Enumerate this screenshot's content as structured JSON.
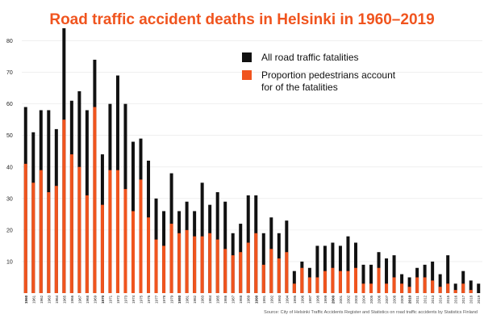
{
  "chart_data": {
    "type": "bar",
    "title": "Road traffic accident deaths in Helsinki in 1960–2019",
    "xlabel": "",
    "ylabel": "",
    "ylim": [
      0,
      85
    ],
    "yticks": [
      10,
      20,
      30,
      40,
      50,
      60,
      70,
      80
    ],
    "grid": true,
    "legend_placement": "top-right",
    "bold_year_labels": [
      "1960",
      "1970",
      "1980",
      "1990",
      "2000",
      "2010"
    ],
    "categories": [
      "1960",
      "1961",
      "1962",
      "1963",
      "1964",
      "1965",
      "1966",
      "1967",
      "1968",
      "1969",
      "1970",
      "1971",
      "1972",
      "1973",
      "1974",
      "1975",
      "1976",
      "1977",
      "1978",
      "1979",
      "1980",
      "1981",
      "1982",
      "1983",
      "1984",
      "1985",
      "1986",
      "1987",
      "1988",
      "1989",
      "1990",
      "1991",
      "1992",
      "1993",
      "1994",
      "1995",
      "1996",
      "1997",
      "1998",
      "1999",
      "2000",
      "2001",
      "2002",
      "2003",
      "2004",
      "2005",
      "2006",
      "2007",
      "2008",
      "2009",
      "2010",
      "2011",
      "2012",
      "2013",
      "2014",
      "2015",
      "2016",
      "2017",
      "2018",
      "2019"
    ],
    "series": [
      {
        "name": "All road traffic fatalities",
        "color": "#111111",
        "values": [
          59,
          51,
          58,
          58,
          52,
          84,
          61,
          64,
          58,
          74,
          44,
          60,
          69,
          60,
          48,
          49,
          42,
          30,
          26,
          38,
          26,
          29,
          26,
          35,
          28,
          32,
          29,
          19,
          22,
          31,
          31,
          19,
          24,
          19,
          23,
          7,
          10,
          8,
          15,
          15,
          16,
          15,
          18,
          16,
          9,
          9,
          13,
          11,
          12,
          6,
          5,
          8,
          9,
          10,
          6,
          12,
          3,
          7,
          4,
          3
        ]
      },
      {
        "name": "Proportion pedestrians account\nfor of the fatalities",
        "color": "#f0541e",
        "values": [
          41,
          35,
          39,
          32,
          34,
          55,
          44,
          40,
          31,
          59,
          28,
          39,
          39,
          33,
          26,
          36,
          24,
          17,
          15,
          22,
          19,
          20,
          18,
          18,
          19,
          17,
          14,
          12,
          13,
          16,
          19,
          9,
          14,
          11,
          13,
          3,
          8,
          5,
          5,
          7,
          8,
          7,
          7,
          8,
          3,
          3,
          8,
          3,
          5,
          3,
          2,
          5,
          5,
          4,
          2,
          3,
          1,
          3,
          1,
          0
        ]
      }
    ]
  },
  "source": "Source: City of Helsinki Traffic Accidents Register and Statistics on road traffic accidents by Statistics Finland"
}
